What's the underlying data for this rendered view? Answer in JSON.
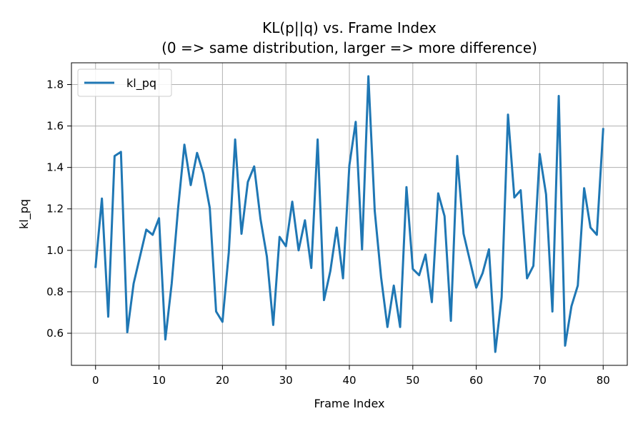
{
  "chart_data": {
    "type": "line",
    "title": "KL(p||q) vs. Frame Index",
    "subtitle": "(0 => same distribution, larger => more difference)",
    "xlabel": "Frame Index",
    "ylabel": "kl_pq",
    "xlim": [
      -3.8,
      83.8
    ],
    "ylim": [
      0.445,
      1.905
    ],
    "x_ticks": [
      0,
      10,
      20,
      30,
      40,
      50,
      60,
      70,
      80
    ],
    "y_ticks": [
      0.6,
      0.8,
      1.0,
      1.2,
      1.4,
      1.6,
      1.8
    ],
    "y_tick_labels": [
      "0.6",
      "0.8",
      "1.0",
      "1.2",
      "1.4",
      "1.6",
      "1.8"
    ],
    "grid": true,
    "legend": {
      "placement": "top-left"
    },
    "series": [
      {
        "name": "kl_pq",
        "color": "#1f77b4",
        "x": [
          0,
          1,
          2,
          3,
          4,
          5,
          6,
          7,
          8,
          9,
          10,
          11,
          12,
          13,
          14,
          15,
          16,
          17,
          18,
          19,
          20,
          21,
          22,
          23,
          24,
          25,
          26,
          27,
          28,
          29,
          30,
          31,
          32,
          33,
          34,
          35,
          36,
          37,
          38,
          39,
          40,
          41,
          42,
          43,
          44,
          45,
          46,
          47,
          48,
          49,
          50,
          51,
          52,
          53,
          54,
          55,
          56,
          57,
          58,
          59,
          60,
          61,
          62,
          63,
          64,
          65,
          66,
          67,
          68,
          69,
          70,
          71,
          72,
          73,
          74,
          75,
          76,
          77,
          78,
          79,
          80
        ],
        "values": [
          0.92,
          1.25,
          0.68,
          1.455,
          1.475,
          0.605,
          0.84,
          0.97,
          1.1,
          1.075,
          1.155,
          0.57,
          0.84,
          1.2,
          1.51,
          1.315,
          1.47,
          1.37,
          1.205,
          0.705,
          0.655,
          0.99,
          1.535,
          1.08,
          1.33,
          1.405,
          1.15,
          0.97,
          0.64,
          1.065,
          1.02,
          1.235,
          1.0,
          1.145,
          0.915,
          1.535,
          0.76,
          0.9,
          1.11,
          0.865,
          1.41,
          1.62,
          1.005,
          1.84,
          1.19,
          0.87,
          0.63,
          0.83,
          0.63,
          1.305,
          0.91,
          0.88,
          0.98,
          0.75,
          1.275,
          1.165,
          0.66,
          1.455,
          1.08,
          0.95,
          0.82,
          0.89,
          1.005,
          0.51,
          0.775,
          1.655,
          1.255,
          1.29,
          0.865,
          0.925,
          1.465,
          1.27,
          0.705,
          1.745,
          0.54,
          0.73,
          0.83,
          1.3,
          1.11,
          1.075,
          1.585
        ]
      }
    ]
  }
}
